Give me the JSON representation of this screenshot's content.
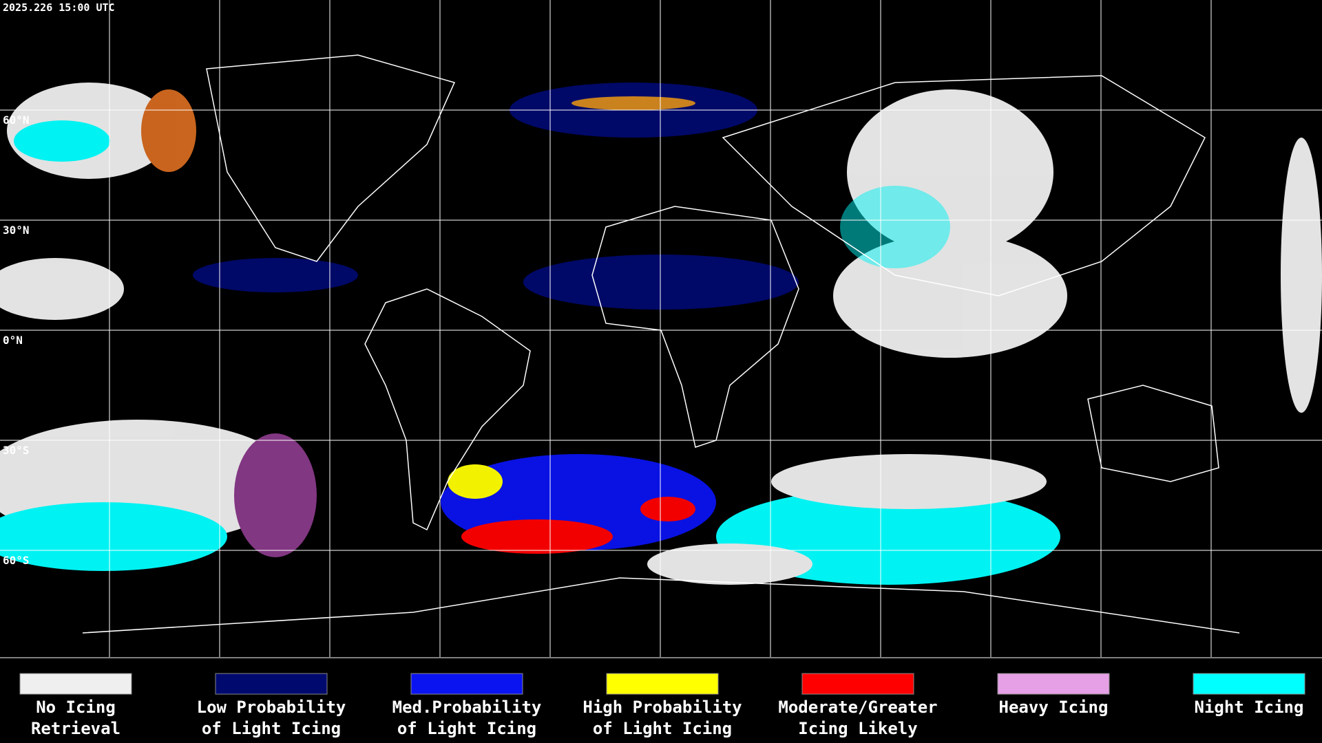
{
  "header": {
    "timestamp": "2025.226 15:00 UTC"
  },
  "latitude_labels": [
    "60°N",
    "30°N",
    "0°N",
    "30°S",
    "60°S"
  ],
  "legend": [
    {
      "label": [
        "No Icing",
        "Retrieval"
      ],
      "color": "#efefef"
    },
    {
      "label": [
        "Low Probability",
        "of Light Icing"
      ],
      "color": "#000a6e"
    },
    {
      "label": [
        "Med.Probability",
        "of Light Icing"
      ],
      "color": "#0a14f0"
    },
    {
      "label": [
        "High Probability",
        "of Light Icing"
      ],
      "color": "#ffff00"
    },
    {
      "label": [
        "Moderate/Greater",
        "Icing Likely"
      ],
      "color": "#ff0000"
    },
    {
      "label": [
        "Heavy Icing"
      ],
      "color": "#e6a0e6"
    },
    {
      "label": [
        "Night Icing"
      ],
      "color": "#00ffff"
    }
  ]
}
